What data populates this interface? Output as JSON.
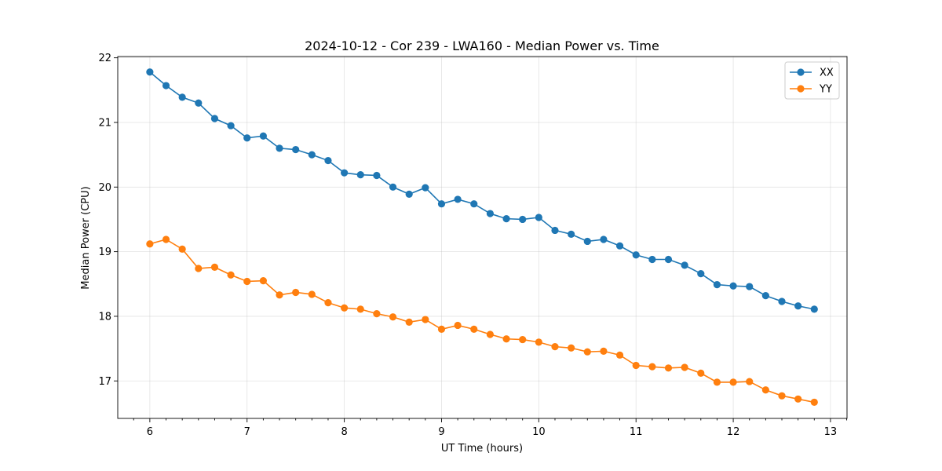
{
  "chart_data": {
    "type": "line",
    "title": "2024-10-12 - Cor 239 - LWA160 - Median Power vs. Time",
    "xlabel": "UT Time (hours)",
    "ylabel": "Median Power (CPU)",
    "xlim": [
      5.67,
      13.17
    ],
    "ylim": [
      16.42,
      22.02
    ],
    "xticks": [
      6,
      7,
      8,
      9,
      10,
      11,
      12,
      13
    ],
    "yticks": [
      17,
      18,
      19,
      20,
      21,
      22
    ],
    "grid": true,
    "legend_position": "top-right",
    "x": [
      6.0,
      6.1667,
      6.3333,
      6.5,
      6.6667,
      6.8333,
      7.0,
      7.1667,
      7.3333,
      7.5,
      7.6667,
      7.8333,
      8.0,
      8.1667,
      8.3333,
      8.5,
      8.6667,
      8.8333,
      9.0,
      9.1667,
      9.3333,
      9.5,
      9.6667,
      9.8333,
      10.0,
      10.1667,
      10.3333,
      10.5,
      10.6667,
      10.8333,
      11.0,
      11.1667,
      11.3333,
      11.5,
      11.6667,
      11.8333,
      12.0,
      12.1667,
      12.3333,
      12.5,
      12.6667,
      12.8333
    ],
    "series": [
      {
        "name": "XX",
        "color": "#1f77b4",
        "values": [
          21.78,
          21.57,
          21.39,
          21.3,
          21.06,
          20.95,
          20.76,
          20.79,
          20.6,
          20.58,
          20.5,
          20.41,
          20.22,
          20.19,
          20.18,
          20.0,
          19.89,
          19.99,
          19.74,
          19.81,
          19.74,
          19.59,
          19.51,
          19.5,
          19.53,
          19.33,
          19.27,
          19.16,
          19.19,
          19.09,
          18.95,
          18.88,
          18.88,
          18.79,
          18.66,
          18.49,
          18.47,
          18.46,
          18.32,
          18.23,
          18.16,
          18.11
        ]
      },
      {
        "name": "YY",
        "color": "#ff7f0e",
        "values": [
          19.12,
          19.19,
          19.04,
          18.74,
          18.76,
          18.64,
          18.54,
          18.55,
          18.33,
          18.37,
          18.34,
          18.21,
          18.13,
          18.11,
          18.04,
          17.99,
          17.91,
          17.95,
          17.8,
          17.86,
          17.8,
          17.72,
          17.65,
          17.64,
          17.6,
          17.53,
          17.51,
          17.45,
          17.46,
          17.4,
          17.24,
          17.22,
          17.2,
          17.21,
          17.12,
          16.98,
          16.98,
          16.99,
          16.86,
          16.77,
          16.72,
          16.67
        ]
      }
    ]
  }
}
